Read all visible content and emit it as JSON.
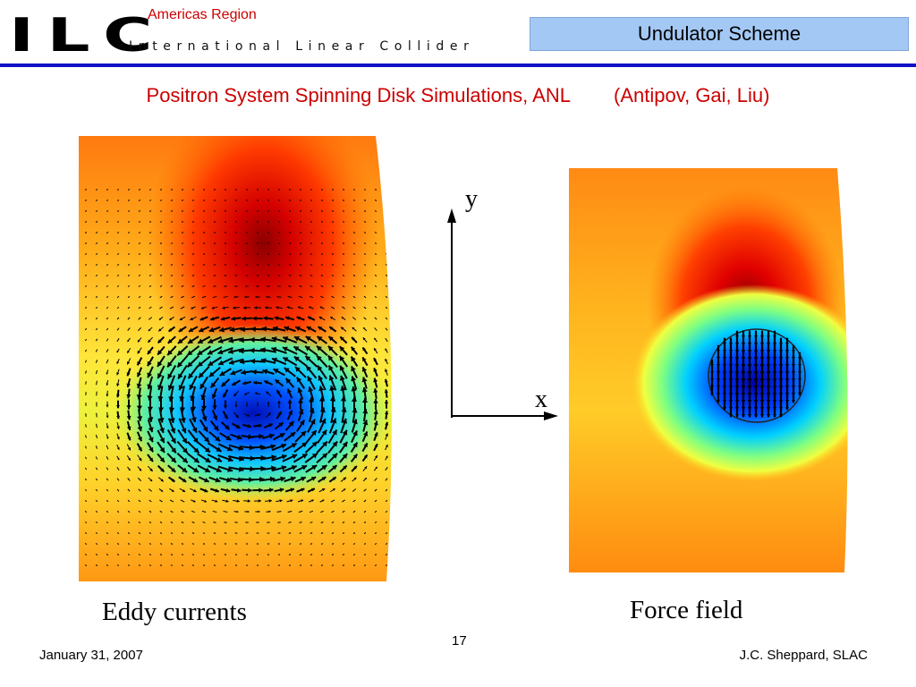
{
  "header": {
    "logo": "ILC",
    "logo_subtitle": "International Linear Collider",
    "region": "Americas Region",
    "section": "Undulator Scheme"
  },
  "slide": {
    "title": "Positron System Spinning Disk Simulations, ANL        (Antipov, Gai, Liu)"
  },
  "figures": {
    "left_caption": "Eddy currents",
    "right_caption": "Force field",
    "axis_y": "y",
    "axis_x": "x"
  },
  "footer": {
    "date": "January 31, 2007",
    "page": "17",
    "author": "J.C. Sheppard, SLAC"
  },
  "colors": {
    "accent_red": "#cc0000",
    "rule_blue": "#1010c8",
    "header_box": "#a4c8f4"
  }
}
